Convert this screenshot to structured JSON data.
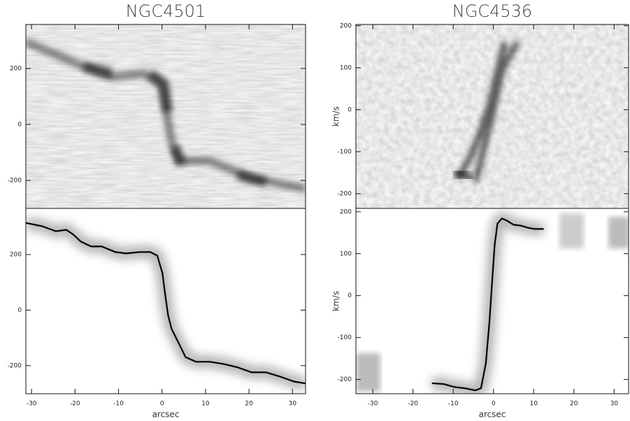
{
  "chart_data": [
    {
      "type": "image",
      "title": "NGC4501",
      "xlim": [
        -31.3,
        33
      ],
      "ylim": [
        -300,
        357
      ],
      "yticks": [
        -200,
        0,
        200
      ]
    },
    {
      "type": "image",
      "title": "NGC4536",
      "ylabel": "km/s",
      "xlim": [
        -34.2,
        33.6
      ],
      "ylim": [
        -235,
        203
      ],
      "yticks": [
        -200,
        -100,
        0,
        100,
        200
      ]
    },
    {
      "type": "line",
      "xlabel": "arcsec",
      "xlim": [
        -31.3,
        33
      ],
      "ylim": [
        -301,
        366
      ],
      "xticks": [
        -30,
        -20,
        -10,
        0,
        10,
        20,
        30
      ],
      "yticks": [
        -200,
        0,
        200
      ],
      "x": [
        -31.3,
        -27.6,
        -24.4,
        -22,
        -20.4,
        -18.7,
        -16.3,
        -13.9,
        -10.7,
        -8.3,
        -5.1,
        -2.7,
        -1.1,
        0.1,
        0.7,
        1.4,
        2.2,
        3.8,
        5.4,
        7.8,
        11,
        14.2,
        17.4,
        20.6,
        23.9,
        27.1,
        30.3,
        33
      ],
      "series": [
        {
          "color": "#000000",
          "values": [
            314,
            302,
            284,
            289,
            272,
            247,
            229,
            229,
            209,
            204,
            209,
            209,
            196,
            133,
            58,
            -18,
            -68,
            -118,
            -169,
            -186,
            -186,
            -194,
            -206,
            -224,
            -224,
            -239,
            -257,
            -264
          ]
        }
      ]
    },
    {
      "type": "line",
      "xlabel": "arcsec",
      "ylabel": "km/s",
      "xlim": [
        -34.2,
        33.6
      ],
      "ylim": [
        -234,
        208
      ],
      "xticks": [
        -30,
        -20,
        -10,
        0,
        10,
        20,
        30
      ],
      "yticks": [
        -200,
        -100,
        0,
        100,
        200
      ],
      "x": [
        -15.3,
        -12.3,
        -9.7,
        -7.1,
        -4.5,
        -3.1,
        -1.9,
        -1,
        -0.3,
        0.3,
        1,
        2.1,
        3.3,
        5,
        6.8,
        8.5,
        10.2,
        12.5
      ],
      "series": [
        {
          "color": "#000000",
          "values": [
            -209,
            -211,
            -218,
            -221,
            -226,
            -221,
            -162,
            -62,
            38,
            122,
            172,
            184,
            179,
            169,
            167,
            162,
            159,
            159
          ]
        }
      ]
    }
  ]
}
